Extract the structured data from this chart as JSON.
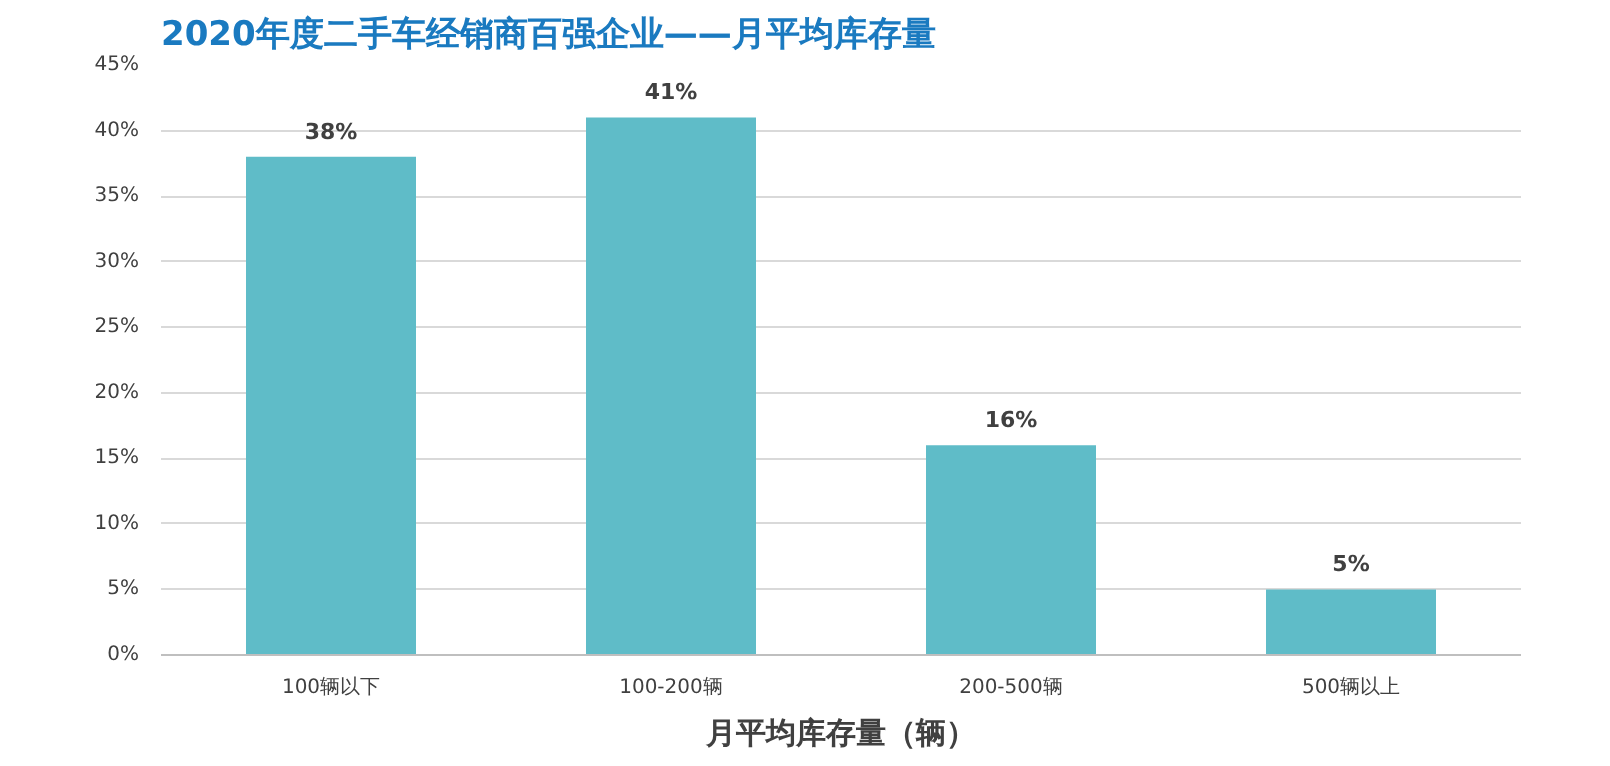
{
  "chart_data": {
    "type": "bar",
    "title": "2020年度二手车经销商百强企业——月平均库存量",
    "xlabel": "月平均库存量（辆）",
    "categories": [
      "100辆以下",
      "100-200辆",
      "200-500辆",
      "500辆以上"
    ],
    "values": [
      38,
      41,
      16,
      5
    ],
    "color": "#5fbcc8",
    "value_labels": [
      "38%",
      "41%",
      "16%",
      "5%"
    ],
    "ylim": [
      0,
      45
    ],
    "yticks": [
      {
        "value": 0,
        "label": "0%"
      },
      {
        "value": 5,
        "label": "5%"
      },
      {
        "value": 10,
        "label": "10%"
      },
      {
        "value": 15,
        "label": "15%"
      },
      {
        "value": 20,
        "label": "20%"
      },
      {
        "value": 25,
        "label": "25%"
      },
      {
        "value": 30,
        "label": "30%"
      },
      {
        "value": 35,
        "label": "35%"
      },
      {
        "value": 40,
        "label": "40%"
      },
      {
        "value": 45,
        "label": "45%"
      }
    ],
    "grid": "y"
  }
}
